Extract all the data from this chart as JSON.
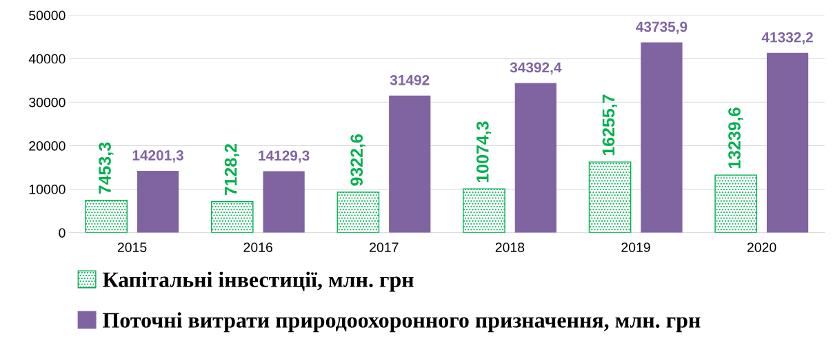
{
  "chart_data": {
    "type": "bar",
    "categories": [
      "2015",
      "2016",
      "2017",
      "2018",
      "2019",
      "2020"
    ],
    "series": [
      {
        "name": "Капітальні інвестиції, млн. грн",
        "color": "#00b050",
        "values": [
          7453.3,
          7128.2,
          9322.6,
          10074.3,
          16255.7,
          13239.6
        ],
        "value_labels": [
          "7453,3",
          "7128,2",
          "9322,6",
          "10074,3",
          "16255,7",
          "13239,6"
        ]
      },
      {
        "name": "Поточні витрати природоохоронного призначення, млн. грн",
        "color": "#8064a2",
        "values": [
          14201.3,
          14129.3,
          31492,
          34392.4,
          43735.9,
          41332.2
        ],
        "value_labels": [
          "14201,3",
          "14129,3",
          "31492",
          "34392,4",
          "43735,9",
          "41332,2"
        ]
      }
    ],
    "ylim": [
      0,
      50000
    ],
    "yticks": [
      0,
      10000,
      20000,
      30000,
      40000,
      50000
    ],
    "grid": "y",
    "legend": "bottom"
  }
}
